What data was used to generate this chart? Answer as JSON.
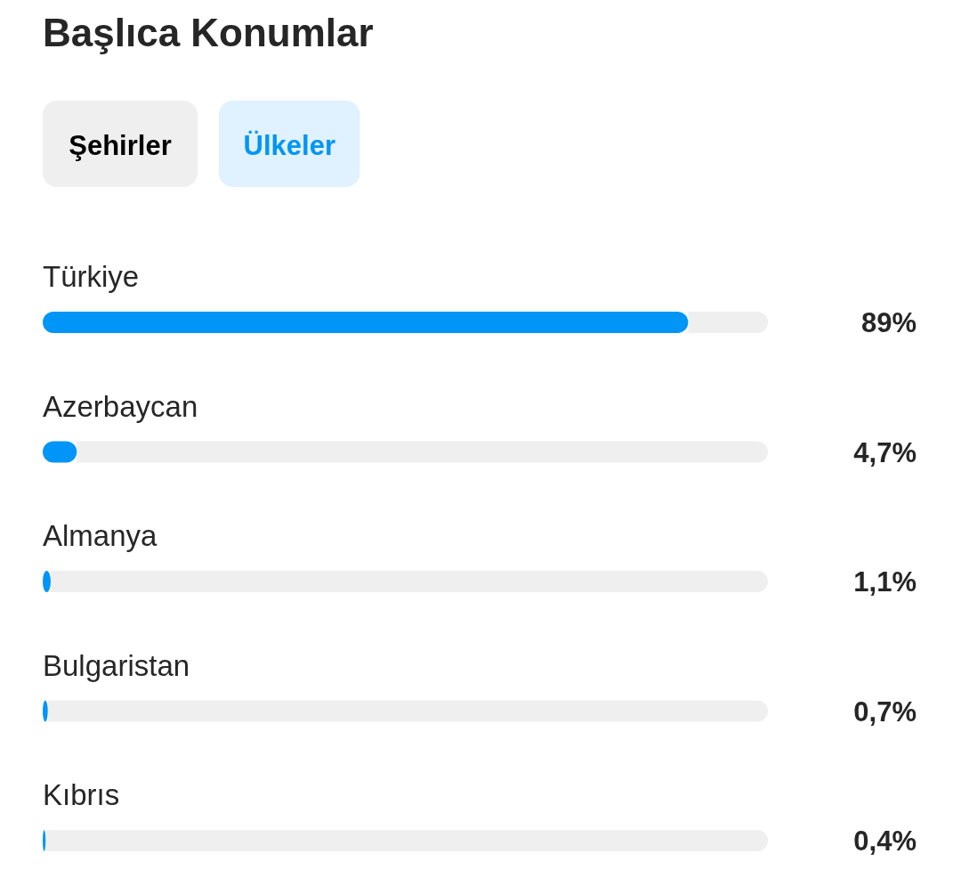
{
  "chart_data": {
    "type": "bar",
    "orientation": "horizontal",
    "title": "Başlıca Konumlar",
    "annotations": [
      "Şehirler",
      "Ülkeler"
    ],
    "categories": [
      "Türkiye",
      "Azerbaycan",
      "Almanya",
      "Bulgaristan",
      "Kıbrıs"
    ],
    "values": [
      89,
      4.7,
      1.1,
      0.7,
      0.4
    ],
    "color": "#0095f6",
    "xlim": [
      0,
      100
    ],
    "tick_labels": "y",
    "value_labels": [
      "89%",
      "4,7%",
      "1,1%",
      "0,7%",
      "0,4%"
    ]
  }
}
